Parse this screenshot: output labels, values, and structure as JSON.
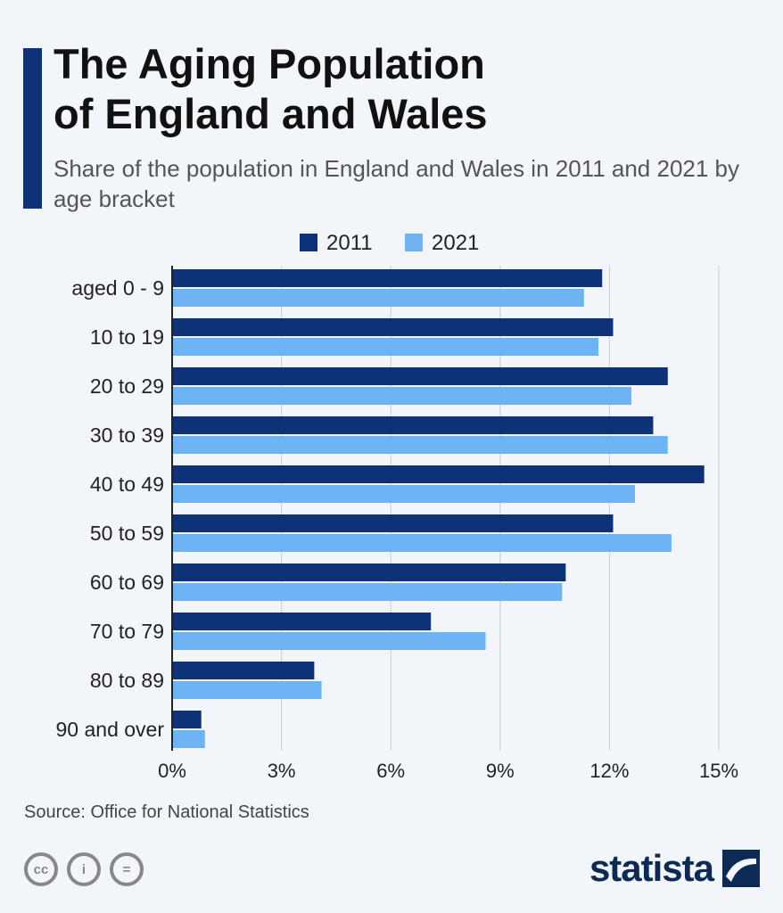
{
  "header": {
    "title_line1": "The Aging Population",
    "title_line2": "of England and Wales",
    "subtitle": "Share of the population in England and Wales in 2011 and 2021 by age bracket"
  },
  "footer": {
    "source": "Source: Office for National Statistics",
    "brand": "statista"
  },
  "colors": {
    "s2011": "#0d3275",
    "s2021": "#6cb4f3"
  },
  "chart_data": {
    "type": "bar",
    "orientation": "horizontal",
    "categories": [
      "aged 0 - 9",
      "10 to 19",
      "20 to 29",
      "30 to 39",
      "40 to 49",
      "50 to 59",
      "60 to 69",
      "70 to 79",
      "80 to 89",
      "90 and over"
    ],
    "series": [
      {
        "name": "2011",
        "values": [
          11.8,
          12.1,
          13.6,
          13.2,
          14.6,
          12.1,
          10.8,
          7.1,
          3.9,
          0.8
        ]
      },
      {
        "name": "2021",
        "values": [
          11.3,
          11.7,
          12.6,
          13.6,
          12.7,
          13.7,
          10.7,
          8.6,
          4.1,
          0.9
        ]
      }
    ],
    "xlim": [
      0,
      15
    ],
    "xticks": [
      "0%",
      "3%",
      "6%",
      "9%",
      "12%",
      "15%"
    ],
    "legend": "top-center",
    "grid": true
  }
}
